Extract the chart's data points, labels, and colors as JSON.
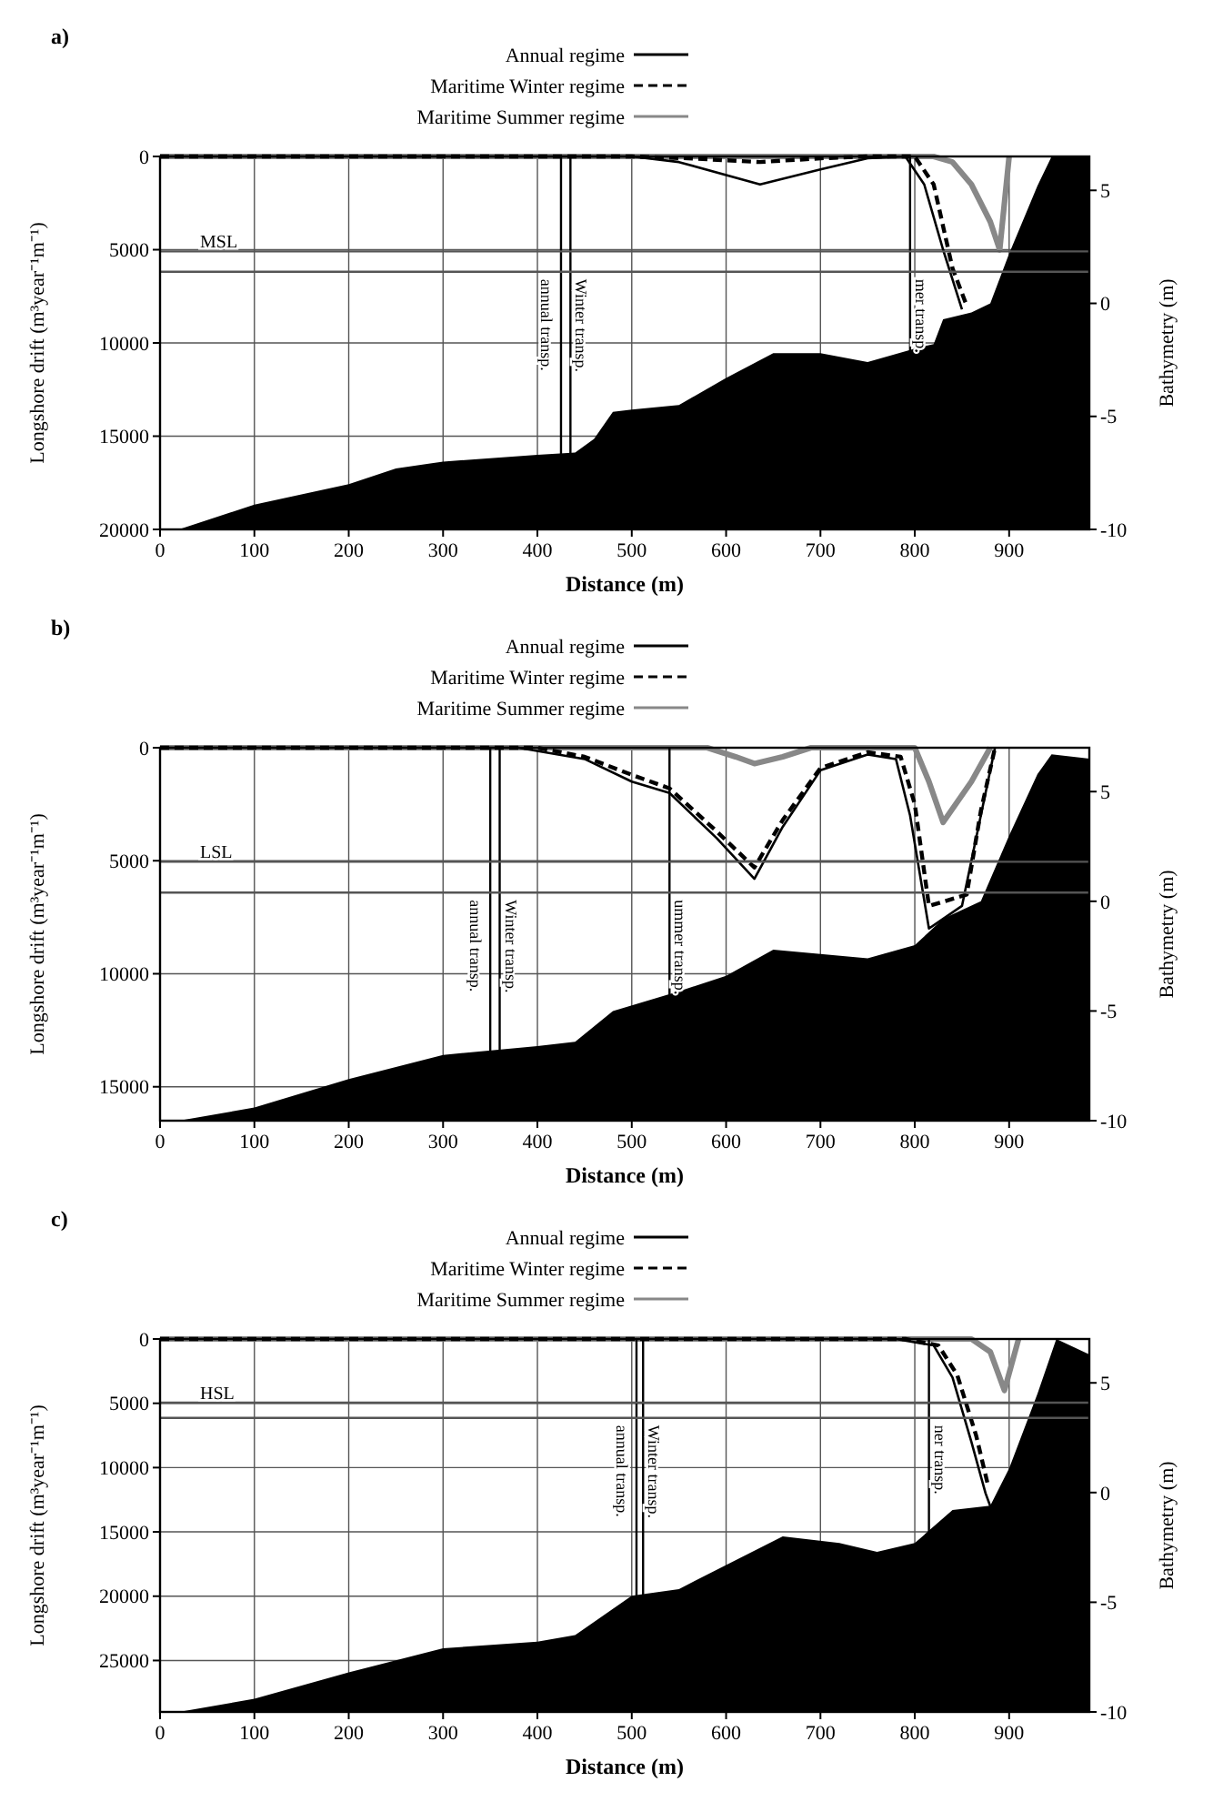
{
  "chart_data": [
    {
      "type": "line",
      "title": "a)",
      "xlabel": "Distance (m)",
      "ylabel": "Longshore drift (m³year⁻¹m⁻¹)",
      "y2label": "Bathymetry (m)",
      "xlim": [
        0,
        985
      ],
      "xticks": [
        0,
        100,
        200,
        300,
        400,
        500,
        600,
        700,
        800,
        900
      ],
      "ylim": [
        20000,
        0
      ],
      "yticks": [
        0,
        5000,
        10000,
        15000,
        20000
      ],
      "y2lim": [
        -10,
        6.5
      ],
      "y2ticks": [
        -10,
        -5,
        0,
        5
      ],
      "grid": true,
      "legend": "top",
      "series": [
        {
          "name": "Annual regime",
          "color": "#000000",
          "line_style": "solid",
          "x": [
            0,
            500,
            550,
            636,
            700,
            750,
            790,
            810,
            830,
            850
          ],
          "values": [
            0,
            0,
            300,
            1500,
            700,
            100,
            0,
            1500,
            5000,
            8200
          ]
        },
        {
          "name": "Maritime Winter regime",
          "color": "#000000",
          "line_style": "dashed",
          "x": [
            0,
            500,
            560,
            636,
            700,
            750,
            800,
            820,
            840,
            855
          ],
          "values": [
            0,
            0,
            100,
            300,
            100,
            0,
            0,
            1500,
            6000,
            8000
          ]
        },
        {
          "name": "Maritime Summer regime",
          "color": "#888888",
          "line_style": "solid",
          "x": [
            0,
            820,
            840,
            860,
            880,
            890,
            900
          ],
          "values": [
            0,
            0,
            300,
            1500,
            3500,
            5000,
            0
          ]
        },
        {
          "type": "area",
          "axis": "y2",
          "color": "#000000",
          "x": [
            20,
            100,
            200,
            250,
            300,
            400,
            440,
            460,
            480,
            500,
            550,
            600,
            650,
            700,
            750,
            800,
            820,
            830,
            860,
            880,
            900,
            930,
            945,
            985,
            985
          ],
          "values": [
            -10,
            -8.9,
            -8,
            -7.3,
            -7,
            -6.7,
            -6.6,
            -6,
            -4.8,
            -4.7,
            -4.5,
            -3.3,
            -2.2,
            -2.2,
            -2.6,
            -2,
            -1.8,
            -0.7,
            -0.4,
            0,
            2.2,
            5.2,
            6.5,
            6.5,
            -10
          ]
        }
      ],
      "ref_lines": [
        {
          "axis": "x",
          "value": 425,
          "label": "annual transp."
        },
        {
          "axis": "x",
          "value": 435,
          "label": "Winter transp."
        },
        {
          "axis": "x",
          "value": 795,
          "label": "mer transp."
        },
        {
          "axis": "y2",
          "value": 2.3,
          "label": "MSL"
        },
        {
          "axis": "y2",
          "value": 1.4
        }
      ]
    },
    {
      "type": "line",
      "title": "b)",
      "xlabel": "Distance (m)",
      "ylabel": "Longshore drift (m³year⁻¹m⁻¹)",
      "y2label": "Bathymetry (m)",
      "xlim": [
        0,
        985
      ],
      "xticks": [
        0,
        100,
        200,
        300,
        400,
        500,
        600,
        700,
        800,
        900
      ],
      "ylim": [
        16500,
        0
      ],
      "yticks": [
        0,
        5000,
        10000,
        15000
      ],
      "y2lim": [
        -10,
        7
      ],
      "y2ticks": [
        -10,
        -5,
        0,
        5
      ],
      "grid": true,
      "legend": "top",
      "series": [
        {
          "name": "Annual regime",
          "color": "#000000",
          "line_style": "solid",
          "x": [
            0,
            380,
            450,
            500,
            540,
            590,
            630,
            660,
            700,
            750,
            780,
            795,
            815,
            850,
            870,
            885
          ],
          "values": [
            0,
            0,
            500,
            1500,
            2000,
            4000,
            5800,
            3500,
            1000,
            300,
            500,
            3000,
            8000,
            7000,
            3000,
            0
          ]
        },
        {
          "name": "Maritime Winter regime",
          "color": "#000000",
          "line_style": "dashed",
          "x": [
            0,
            400,
            450,
            500,
            540,
            590,
            630,
            660,
            700,
            750,
            785,
            800,
            815,
            855,
            870,
            885
          ],
          "values": [
            0,
            0,
            400,
            1200,
            1800,
            3700,
            5300,
            3200,
            900,
            200,
            400,
            2500,
            7000,
            6500,
            2800,
            0
          ]
        },
        {
          "name": "Maritime Summer regime",
          "color": "#888888",
          "line_style": "solid",
          "x": [
            0,
            580,
            610,
            630,
            660,
            690,
            800,
            815,
            830,
            860,
            880
          ],
          "values": [
            0,
            0,
            400,
            700,
            400,
            0,
            0,
            1500,
            3300,
            1500,
            0
          ]
        },
        {
          "type": "area",
          "axis": "y2",
          "color": "#000000",
          "x": [
            20,
            100,
            200,
            300,
            400,
            440,
            480,
            550,
            600,
            650,
            700,
            750,
            800,
            830,
            870,
            900,
            930,
            945,
            985,
            985
          ],
          "values": [
            -10,
            -9.4,
            -8.1,
            -7,
            -6.6,
            -6.4,
            -5,
            -4.1,
            -3.4,
            -2.2,
            -2.4,
            -2.6,
            -2,
            -0.8,
            0,
            3,
            5.8,
            6.7,
            6.5,
            -10
          ]
        }
      ],
      "ref_lines": [
        {
          "axis": "x",
          "value": 350,
          "label": "annual transp."
        },
        {
          "axis": "x",
          "value": 360,
          "label": "Winter transp."
        },
        {
          "axis": "x",
          "value": 540,
          "label": "ummer transp."
        },
        {
          "axis": "y2",
          "value": 1.8,
          "label": "LSL"
        },
        {
          "axis": "y2",
          "value": 0.4
        }
      ]
    },
    {
      "type": "line",
      "title": "c)",
      "xlabel": "Distance (m)",
      "ylabel": "Longshore drift (m³year⁻¹m⁻¹)",
      "y2label": "Bathymetry (m)",
      "xlim": [
        0,
        985
      ],
      "xticks": [
        0,
        100,
        200,
        300,
        400,
        500,
        600,
        700,
        800,
        900
      ],
      "ylim": [
        29000,
        0
      ],
      "yticks": [
        0,
        5000,
        10000,
        15000,
        20000,
        25000
      ],
      "y2lim": [
        -10,
        7
      ],
      "y2ticks": [
        -10,
        -5,
        0,
        5
      ],
      "grid": true,
      "legend": "top",
      "series": [
        {
          "name": "Annual regime",
          "color": "#000000",
          "line_style": "solid",
          "x": [
            0,
            780,
            820,
            840,
            860,
            875,
            880
          ],
          "values": [
            0,
            0,
            500,
            3000,
            8000,
            12000,
            13000
          ]
        },
        {
          "name": "Maritime Winter regime",
          "color": "#000000",
          "line_style": "dashed",
          "x": [
            0,
            790,
            825,
            845,
            865,
            878
          ],
          "values": [
            0,
            0,
            500,
            2800,
            7500,
            11500
          ]
        },
        {
          "name": "Maritime Summer regime",
          "color": "#888888",
          "line_style": "solid",
          "x": [
            0,
            860,
            880,
            895,
            910
          ],
          "values": [
            0,
            0,
            1000,
            4000,
            0
          ]
        },
        {
          "type": "area",
          "axis": "y2",
          "color": "#000000",
          "x": [
            20,
            100,
            200,
            300,
            400,
            440,
            500,
            550,
            600,
            660,
            720,
            760,
            800,
            840,
            880,
            900,
            930,
            950,
            985,
            985
          ],
          "values": [
            -10,
            -9.4,
            -8.2,
            -7.1,
            -6.8,
            -6.5,
            -4.7,
            -4.4,
            -3.3,
            -2,
            -2.3,
            -2.7,
            -2.3,
            -0.8,
            -0.6,
            1.1,
            4.5,
            7,
            6.3,
            -10
          ]
        }
      ],
      "ref_lines": [
        {
          "axis": "x",
          "value": 505,
          "label": "annual transp."
        },
        {
          "axis": "x",
          "value": 512,
          "label": "Winter transp."
        },
        {
          "axis": "x",
          "value": 815,
          "label": "ner transp."
        },
        {
          "axis": "y2",
          "value": 4.1,
          "label": "HSL"
        },
        {
          "axis": "y2",
          "value": 3.4
        }
      ]
    }
  ]
}
